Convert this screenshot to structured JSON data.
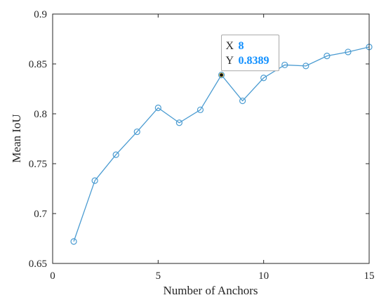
{
  "chart_data": {
    "type": "line",
    "title": "",
    "xlabel": "Number of Anchors",
    "ylabel": "Mean IoU",
    "xlim": [
      0,
      15
    ],
    "ylim": [
      0.65,
      0.9
    ],
    "x_ticks": [
      0,
      5,
      10,
      15
    ],
    "y_ticks": [
      0.65,
      0.7,
      0.75,
      0.8,
      0.85,
      0.9
    ],
    "x_tick_labels": [
      "0",
      "5",
      "10",
      "15"
    ],
    "y_tick_labels": [
      "0.65",
      "0.7",
      "0.75",
      "0.8",
      "0.85",
      "0.9"
    ],
    "grid": false,
    "marker": "circle",
    "series": [
      {
        "x": [
          1,
          2,
          3,
          4,
          5,
          6,
          7,
          8,
          9,
          10,
          11,
          12,
          13,
          14,
          15
        ],
        "values": [
          0.672,
          0.733,
          0.759,
          0.782,
          0.806,
          0.791,
          0.804,
          0.8389,
          0.813,
          0.836,
          0.849,
          0.848,
          0.858,
          0.862,
          0.867
        ],
        "color": "#4a9bd1"
      }
    ],
    "datatip": {
      "x_key": "X",
      "y_key": "Y",
      "x_value": "8",
      "y_value": "0.8389",
      "x": 8,
      "y": 0.8389,
      "value_color": "#0f8fff"
    }
  }
}
